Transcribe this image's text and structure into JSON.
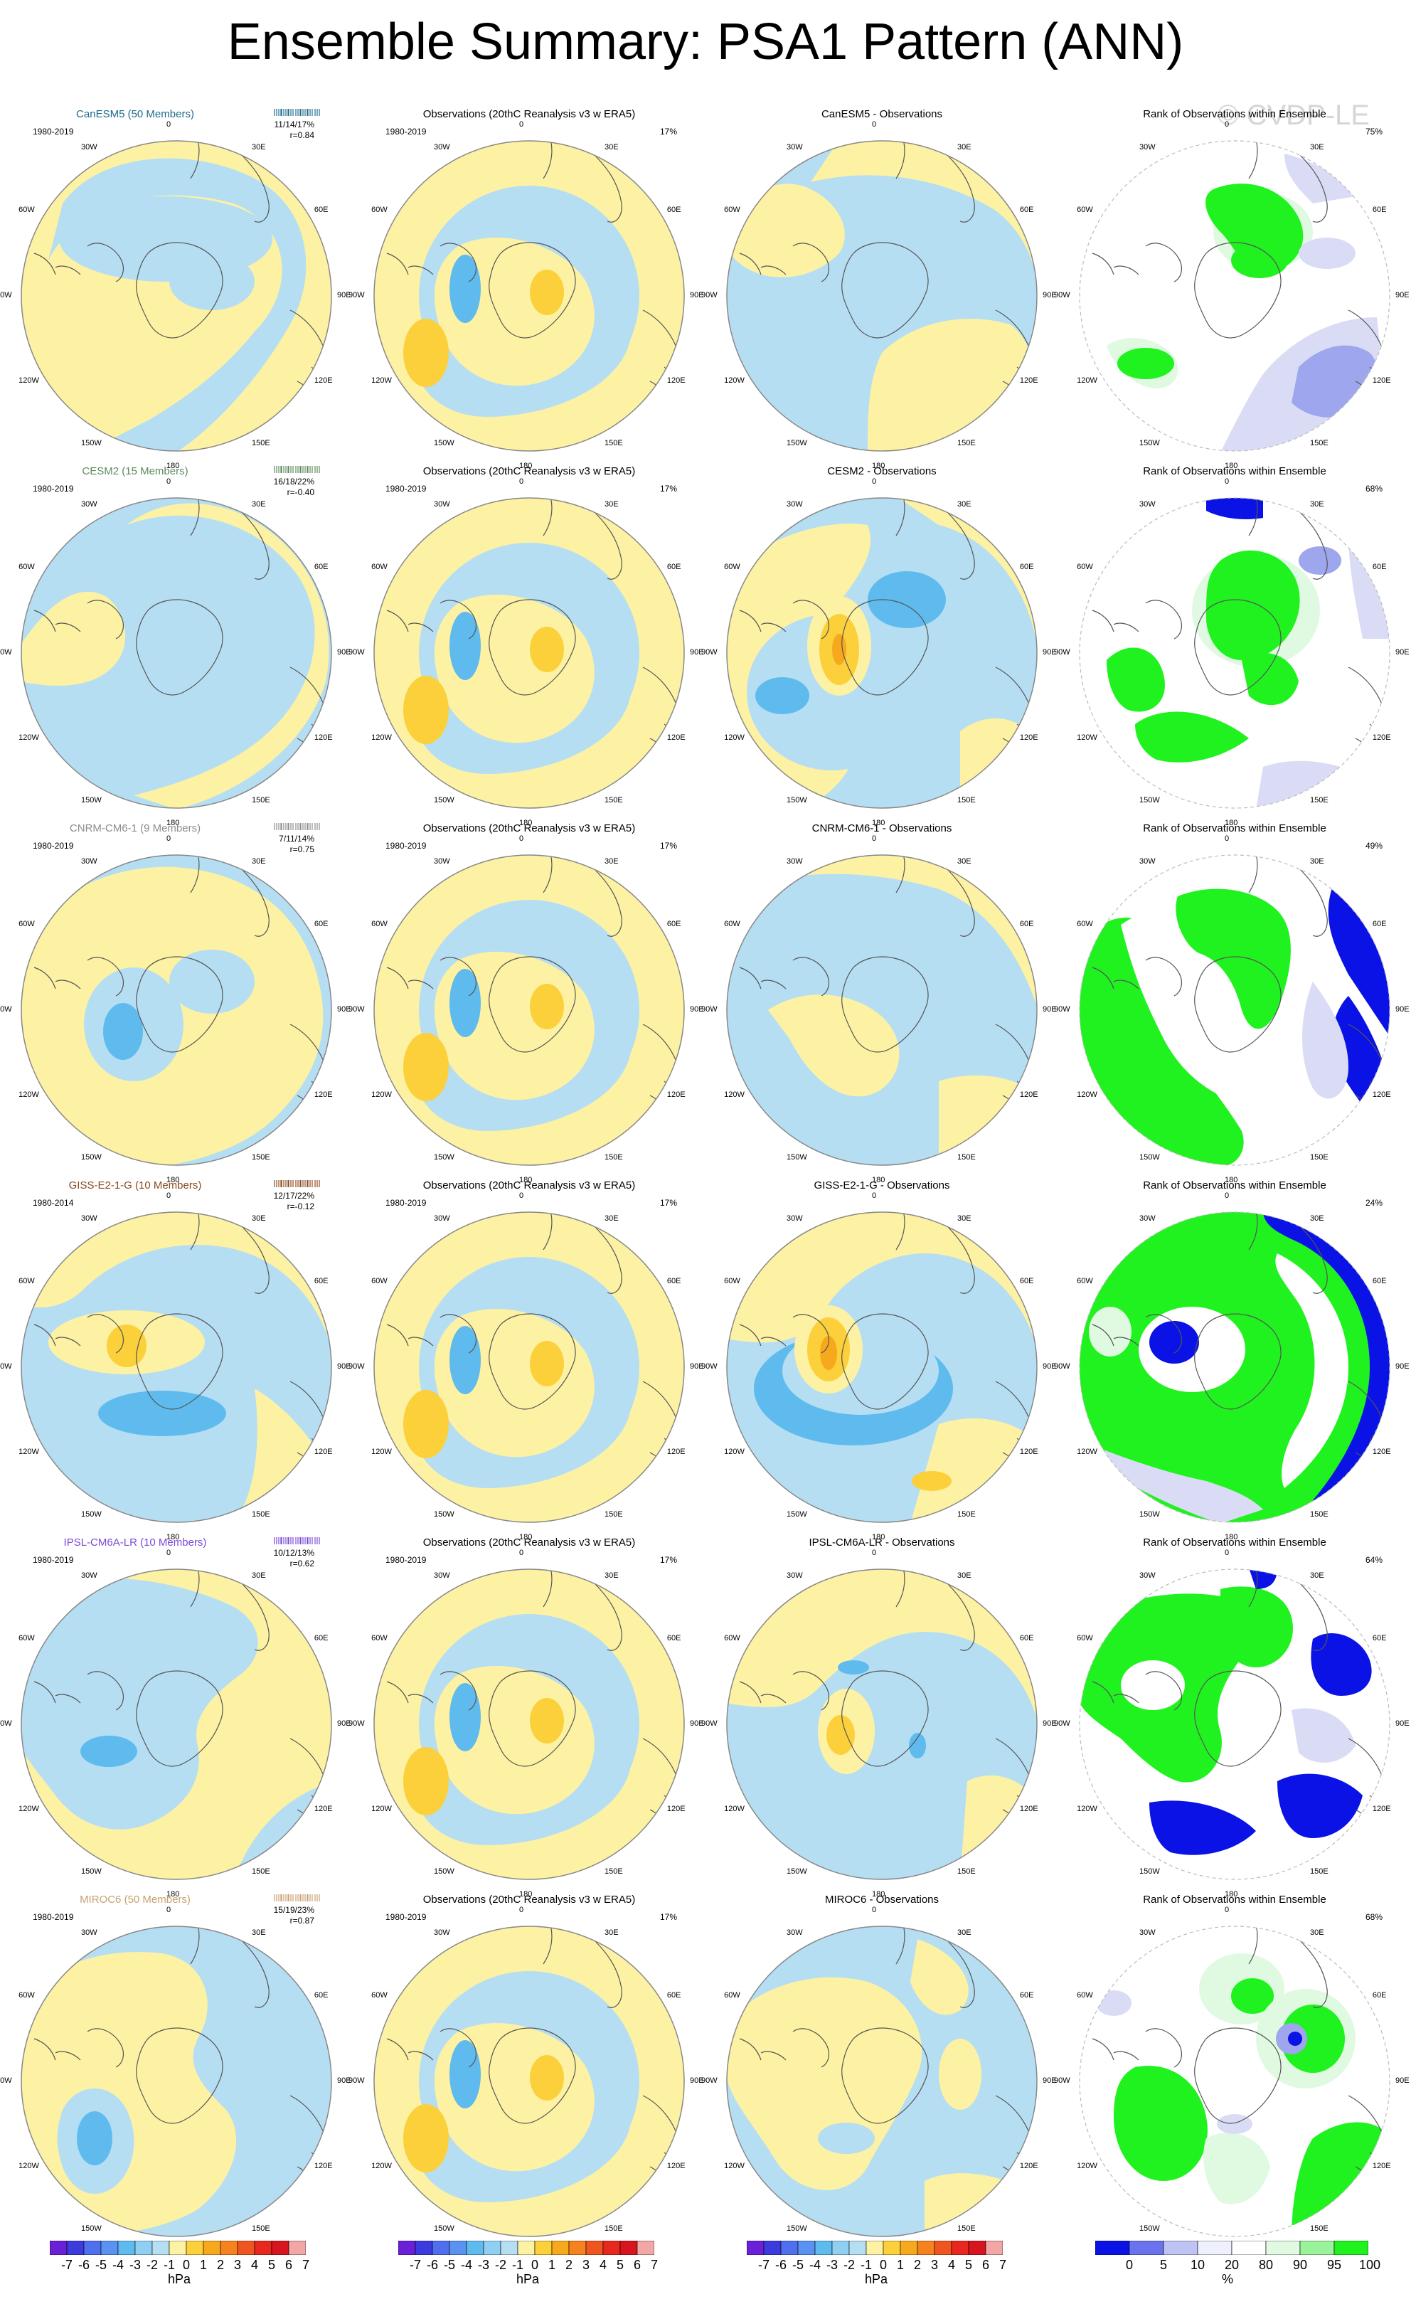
{
  "title": "Ensemble Summary: PSA1 Pattern (ANN)",
  "watermark": "© CVDP-LE",
  "lon_labels": [
    "0",
    "30E",
    "60E",
    "90E",
    "120E",
    "150E",
    "180",
    "150W",
    "120W",
    "90W",
    "60W",
    "30W"
  ],
  "colors": {
    "light_blue": "#b6def2",
    "mid_blue": "#5fbbee",
    "light_yellow": "#fdf2a3",
    "mid_yellow": "#fbd03a",
    "orange": "#f7a91e",
    "rank_green": "#1ff21f",
    "rank_lightgreen": "#dffae0",
    "rank_blue": "#0a12e6",
    "rank_lightblue": "#dadcf6",
    "rank_lavender": "#9ea6ee"
  },
  "rows": [
    {
      "model": {
        "title": "CanESM5 (50 Members)",
        "color": "#1f6a8c",
        "period": "1980-2019",
        "stats": "11/14/17%",
        "r": "r=0.84"
      },
      "obs": {
        "title": "Observations (20thC Reanalysis v3 w ERA5)",
        "period": "1980-2019",
        "pct": "17%"
      },
      "diff": {
        "title": "CanESM5 - Observations"
      },
      "rank": {
        "title": "Rank of Observations within Ensemble",
        "pct": "75%"
      }
    },
    {
      "model": {
        "title": "CESM2 (15 Members)",
        "color": "#5c8a5c",
        "period": "1980-2019",
        "stats": "16/18/22%",
        "r": "r=-0.40"
      },
      "obs": {
        "title": "Observations (20thC Reanalysis v3 w ERA5)",
        "period": "1980-2019",
        "pct": "17%"
      },
      "diff": {
        "title": "CESM2 - Observations"
      },
      "rank": {
        "title": "Rank of Observations within Ensemble",
        "pct": "68%"
      }
    },
    {
      "model": {
        "title": "CNRM-CM6-1 (9 Members)",
        "color": "#8c8c8c",
        "period": "1980-2019",
        "stats": "7/11/14%",
        "r": "r=0.75"
      },
      "obs": {
        "title": "Observations (20thC Reanalysis v3 w ERA5)",
        "period": "1980-2019",
        "pct": "17%"
      },
      "diff": {
        "title": "CNRM-CM6-1 - Observations"
      },
      "rank": {
        "title": "Rank of Observations within Ensemble",
        "pct": "49%"
      }
    },
    {
      "model": {
        "title": "GISS-E2-1-G (10 Members)",
        "color": "#8a4a1e",
        "period": "1980-2014",
        "stats": "12/17/22%",
        "r": "r=-0.12"
      },
      "obs": {
        "title": "Observations (20thC Reanalysis v3 w ERA5)",
        "period": "1980-2019",
        "pct": "17%"
      },
      "diff": {
        "title": "GISS-E2-1-G - Observations"
      },
      "rank": {
        "title": "Rank of Observations within Ensemble",
        "pct": "24%"
      }
    },
    {
      "model": {
        "title": "IPSL-CM6A-LR (10 Members)",
        "color": "#7a4ad6",
        "period": "1980-2019",
        "stats": "10/12/13%",
        "r": "r=0.62"
      },
      "obs": {
        "title": "Observations (20thC Reanalysis v3 w ERA5)",
        "period": "1980-2019",
        "pct": "17%"
      },
      "diff": {
        "title": "IPSL-CM6A-LR - Observations"
      },
      "rank": {
        "title": "Rank of Observations within Ensemble",
        "pct": "64%"
      }
    },
    {
      "model": {
        "title": "MIROC6 (50 Members)",
        "color": "#c8a070",
        "period": "1980-2019",
        "stats": "15/19/23%",
        "r": "r=0.87"
      },
      "obs": {
        "title": "Observations (20thC Reanalysis v3 w ERA5)",
        "period": "1980-2019",
        "pct": "17%"
      },
      "diff": {
        "title": "MIROC6 - Observations"
      },
      "rank": {
        "title": "Rank of Observations within Ensemble",
        "pct": "68%"
      }
    }
  ],
  "colorbar_hpa": {
    "ticks": [
      "-7",
      "-6",
      "-5",
      "-4",
      "-3",
      "-2",
      "-1",
      "0",
      "1",
      "2",
      "3",
      "4",
      "5",
      "6",
      "7"
    ],
    "colors": [
      "#6b1fd6",
      "#3b3bde",
      "#4f6fee",
      "#5a92f2",
      "#5fbbee",
      "#8fd0f2",
      "#b6def2",
      "#fdf2a3",
      "#fbd03a",
      "#f7a91e",
      "#f5821e",
      "#ef5520",
      "#e8281e",
      "#d6151e",
      "#f2a6a6"
    ],
    "unit": "hPa"
  },
  "colorbar_rank": {
    "ticks": [
      "0",
      "5",
      "10",
      "20",
      "80",
      "90",
      "95",
      "100"
    ],
    "colors": [
      "#0a12e6",
      "#6b72ee",
      "#bfc3f4",
      "#eef0fb",
      "#ffffff",
      "#dffae0",
      "#9af29a",
      "#1ff21f"
    ],
    "unit": "%"
  }
}
